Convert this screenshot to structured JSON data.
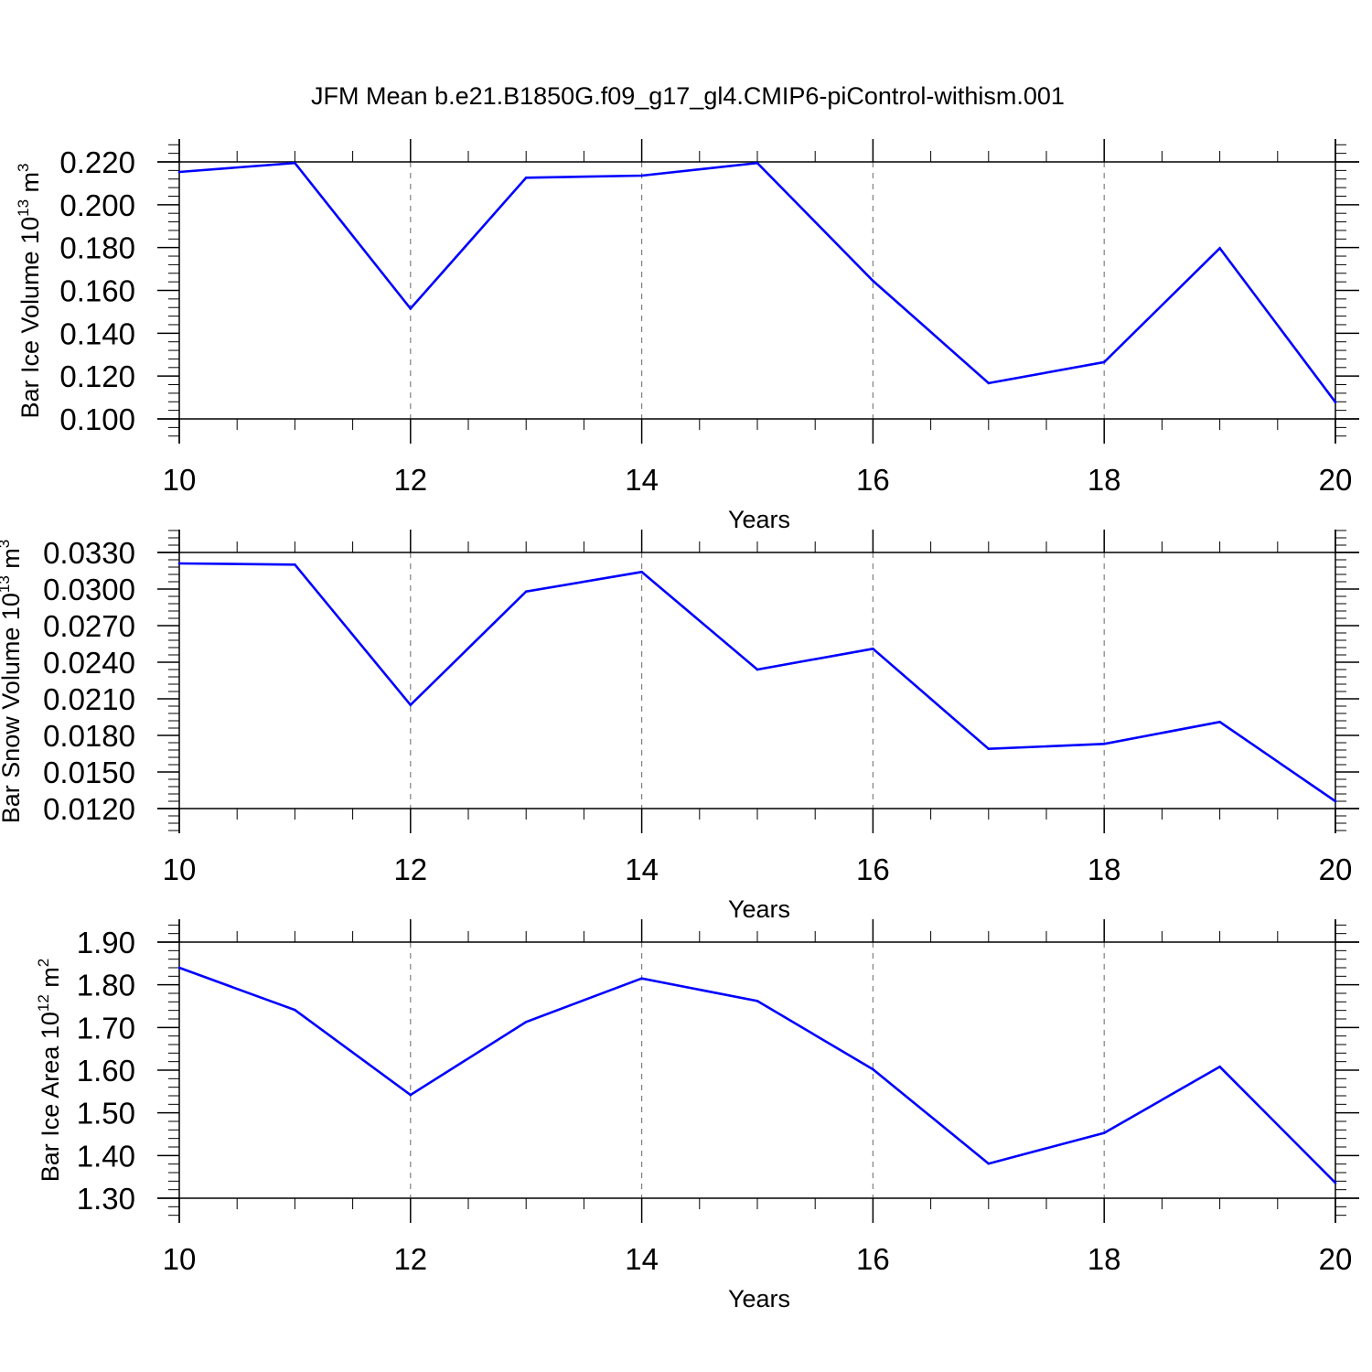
{
  "title": "JFM Mean b.e21.B1850G.f09_g17_gl4.CMIP6-piControl-withism.001",
  "colors": {
    "line": "#0000ff",
    "axis": "#000000",
    "grid": "#808080"
  },
  "chart_data": [
    {
      "type": "line",
      "name": "ice-volume",
      "ylabel_main": "Bar Ice Volume 10",
      "ylabel_exp": "13",
      "ylabel_unit": " m",
      "ylabel_unit_exp": "3",
      "xlabel": "Years",
      "xlim": [
        10,
        20
      ],
      "ylim": [
        0.1,
        0.22
      ],
      "xticks": [
        10,
        12,
        14,
        16,
        18,
        20
      ],
      "xtick_labels": [
        "10",
        "12",
        "14",
        "16",
        "18",
        "20"
      ],
      "yticks": [
        0.1,
        0.12,
        0.14,
        0.16,
        0.18,
        0.2,
        0.22
      ],
      "ytick_labels": [
        "0.100",
        "0.120",
        "0.140",
        "0.160",
        "0.180",
        "0.200",
        "0.220"
      ],
      "x": [
        10,
        11,
        12,
        13,
        14,
        15,
        16,
        17,
        18,
        19,
        20
      ],
      "values": [
        0.2153,
        0.2195,
        0.1515,
        0.2126,
        0.2136,
        0.2195,
        0.1645,
        0.1167,
        0.1265,
        0.1797,
        0.1078
      ]
    },
    {
      "type": "line",
      "name": "snow-volume",
      "ylabel_main": "Bar Snow Volume 10",
      "ylabel_exp": "13",
      "ylabel_unit": " m",
      "ylabel_unit_exp": "3",
      "xlabel": "Years",
      "xlim": [
        10,
        20
      ],
      "ylim": [
        0.012,
        0.033
      ],
      "xticks": [
        10,
        12,
        14,
        16,
        18,
        20
      ],
      "xtick_labels": [
        "10",
        "12",
        "14",
        "16",
        "18",
        "20"
      ],
      "yticks": [
        0.012,
        0.015,
        0.018,
        0.021,
        0.024,
        0.027,
        0.03,
        0.033
      ],
      "ytick_labels": [
        "0.0120",
        "0.0150",
        "0.0180",
        "0.0210",
        "0.0240",
        "0.0270",
        "0.0300",
        "0.0330"
      ],
      "x": [
        10,
        11,
        12,
        13,
        14,
        15,
        16,
        17,
        18,
        19,
        20
      ],
      "values": [
        0.0321,
        0.032,
        0.0205,
        0.0298,
        0.0314,
        0.0234,
        0.0251,
        0.0169,
        0.0173,
        0.0191,
        0.0126
      ]
    },
    {
      "type": "line",
      "name": "ice-area",
      "ylabel_main": "Bar Ice Area 10",
      "ylabel_exp": "12",
      "ylabel_unit": " m",
      "ylabel_unit_exp": "2",
      "xlabel": "Years",
      "xlim": [
        10,
        20
      ],
      "ylim": [
        1.3,
        1.9
      ],
      "xticks": [
        10,
        12,
        14,
        16,
        18,
        20
      ],
      "xtick_labels": [
        "10",
        "12",
        "14",
        "16",
        "18",
        "20"
      ],
      "yticks": [
        1.3,
        1.4,
        1.5,
        1.6,
        1.7,
        1.8,
        1.9
      ],
      "ytick_labels": [
        "1.30",
        "1.40",
        "1.50",
        "1.60",
        "1.70",
        "1.80",
        "1.90"
      ],
      "x": [
        10,
        11,
        12,
        13,
        14,
        15,
        16,
        17,
        18,
        19,
        20
      ],
      "values": [
        1.84,
        1.741,
        1.542,
        1.713,
        1.815,
        1.762,
        1.602,
        1.381,
        1.453,
        1.608,
        1.336
      ]
    }
  ]
}
